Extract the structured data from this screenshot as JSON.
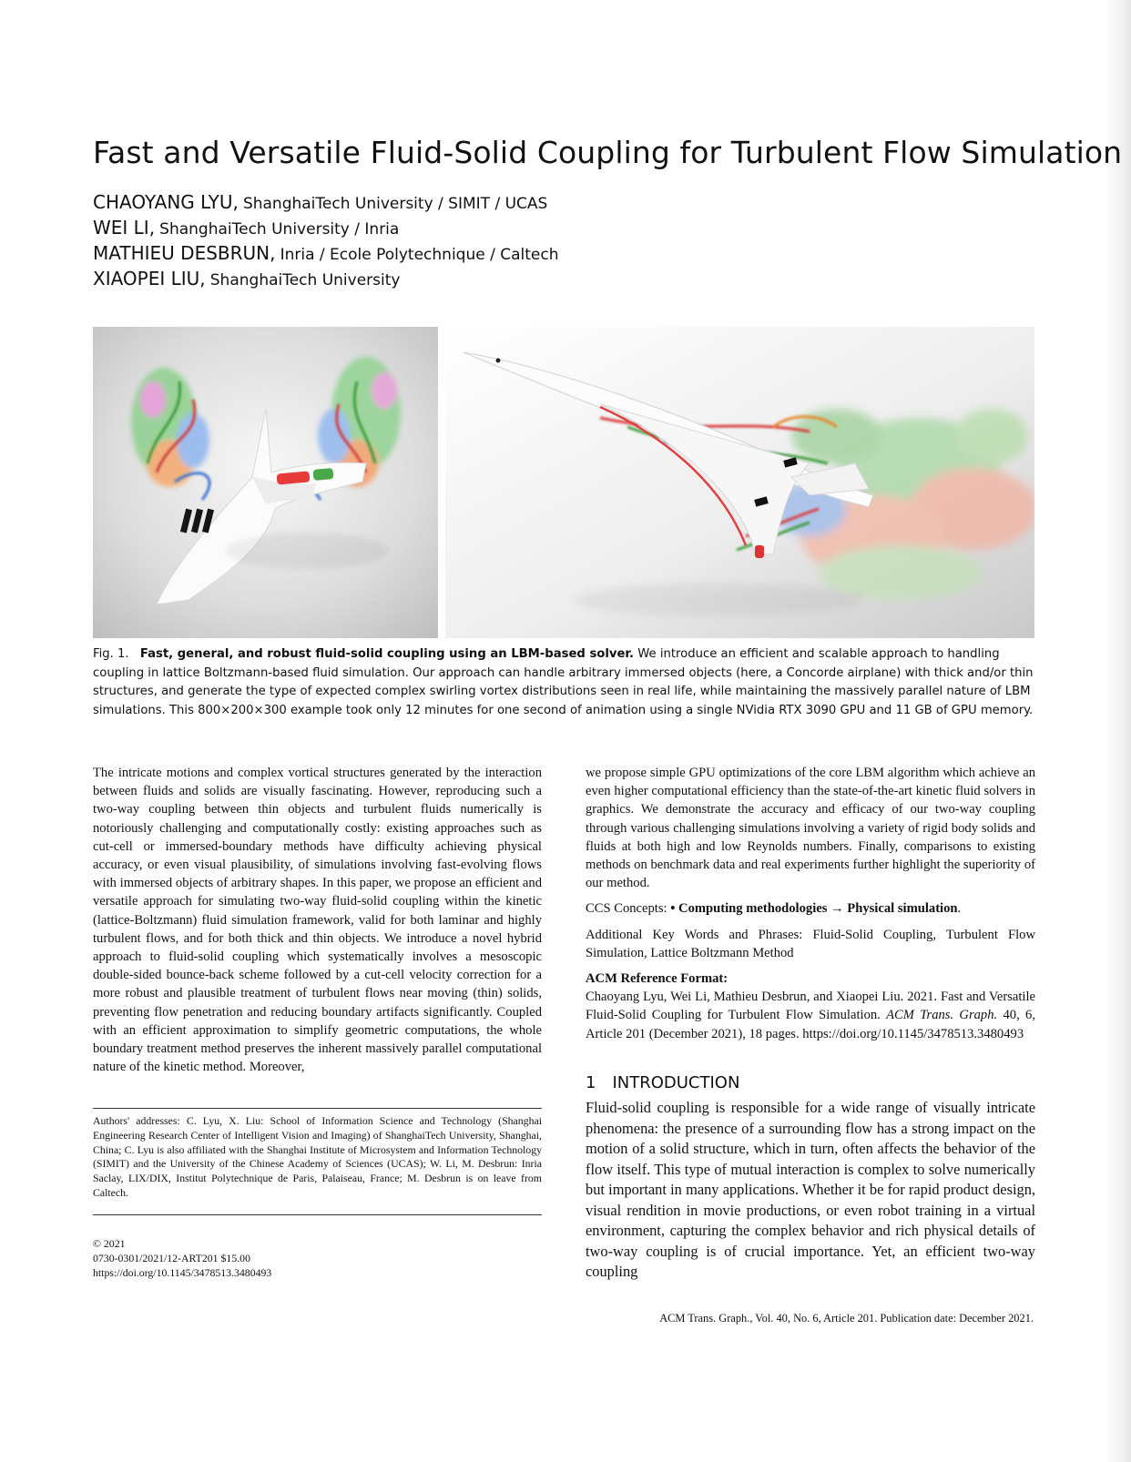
{
  "title": "Fast and Versatile Fluid-Solid Coupling for Turbulent Flow Simulation",
  "authors": [
    {
      "name": "CHAOYANG LYU,",
      "affiliation": "ShanghaiTech University / SIMIT / UCAS"
    },
    {
      "name": "WEI LI,",
      "affiliation": "ShanghaiTech University / Inria"
    },
    {
      "name": "MATHIEU DESBRUN,",
      "affiliation": "Inria / Ecole Polytechnique / Caltech"
    },
    {
      "name": "XIAOPEI LIU,",
      "affiliation": "ShanghaiTech University"
    }
  ],
  "figure": {
    "label": "Fig. 1.",
    "caption_bold": "Fast, general, and robust fluid-solid coupling using an LBM-based solver.",
    "caption_text": "We introduce an efficient and scalable approach to handling coupling in lattice Boltzmann-based fluid simulation. Our approach can handle arbitrary immersed objects (here, a Concorde airplane) with thick and/or thin structures, and generate the type of expected complex swirling vortex distributions seen in real life, while maintaining the massively parallel nature of LBM simulations. This 800×200×300 example took only 12 minutes for one second of animation using a single NVidia RTX 3090 GPU and 11 GB of GPU memory."
  },
  "abstract": {
    "left": "The intricate motions and complex vortical structures generated by the interaction between fluids and solids are visually fascinating. However, reproducing such a two-way coupling between thin objects and turbulent fluids numerically is notoriously challenging and computationally costly: existing approaches such as cut-cell or immersed-boundary methods have difficulty achieving physical accuracy, or even visual plausibility, of simulations involving fast-evolving flows with immersed objects of arbitrary shapes. In this paper, we propose an efficient and versatile approach for simulating two-way fluid-solid coupling within the kinetic (lattice-Boltzmann) fluid simulation framework, valid for both laminar and highly turbulent flows, and for both thick and thin objects. We introduce a novel hybrid approach to fluid-solid coupling which systematically involves a mesoscopic double-sided bounce-back scheme followed by a cut-cell velocity correction for a more robust and plausible treatment of turbulent flows near moving (thin) solids, preventing flow penetration and reducing boundary artifacts significantly. Coupled with an efficient approximation to simplify geometric computations, the whole boundary treatment method preserves the inherent massively parallel computational nature of the kinetic method. Moreover,",
    "right": "we propose simple GPU optimizations of the core LBM algorithm which achieve an even higher computational efficiency than the state-of-the-art kinetic fluid solvers in graphics. We demonstrate the accuracy and efficacy of our two-way coupling through various challenging simulations involving a variety of rigid body solids and fluids at both high and low Reynolds numbers. Finally, comparisons to existing methods on benchmark data and real experiments further highlight the superiority of our method."
  },
  "ccs": {
    "label": "CCS Concepts:",
    "bullet": "•",
    "concept": "Computing methodologies → Physical simulation",
    "end": "."
  },
  "keywords": {
    "label": "Additional Key Words and Phrases:",
    "text": "Fluid-Solid Coupling, Turbulent Flow Simulation, Lattice Boltzmann Method"
  },
  "reference": {
    "heading": "ACM Reference Format:",
    "text": "Chaoyang Lyu, Wei Li, Mathieu Desbrun, and Xiaopei Liu. 2021. Fast and Versatile Fluid-Solid Coupling for Turbulent Flow Simulation.",
    "journal": "ACM Trans. Graph.",
    "rest": "40, 6, Article 201 (December 2021), 18 pages. https://doi.org/10.1145/3478513.3480493"
  },
  "footnote": {
    "authors_addresses": "Authors' addresses: C. Lyu, X. Liu: School of Information Science and Technology (Shanghai Engineering Research Center of Intelligent Vision and Imaging) of ShanghaiTech University, Shanghai, China; C. Lyu is also affiliated with the Shanghai Institute of Microsystem and Information Technology (SIMIT) and the University of the Chinese Academy of Sciences (UCAS); W. Li, M. Desbrun: Inria Saclay, LIX/DIX, Institut Polytechnique de Paris, Palaiseau, France; M. Desbrun is on leave from Caltech.",
    "copyright": "© 2021",
    "issn": "0730-0301/2021/12-ART201 $15.00",
    "doi": "https://doi.org/10.1145/3478513.3480493"
  },
  "section": {
    "number": "1",
    "title": "INTRODUCTION",
    "text": "Fluid-solid coupling is responsible for a wide range of visually intricate phenomena: the presence of a surrounding flow has a strong impact on the motion of a solid structure, which in turn, often affects the behavior of the flow itself. This type of mutual interaction is complex to solve numerically but important in many applications. Whether it be for rapid product design, visual rendition in movie productions, or even robot training in a virtual environment, capturing the complex behavior and rich physical details of two-way coupling is of crucial importance. Yet, an efficient two-way coupling"
  },
  "footer": "ACM Trans. Graph., Vol. 40, No. 6, Article 201. Publication date: December 2021."
}
